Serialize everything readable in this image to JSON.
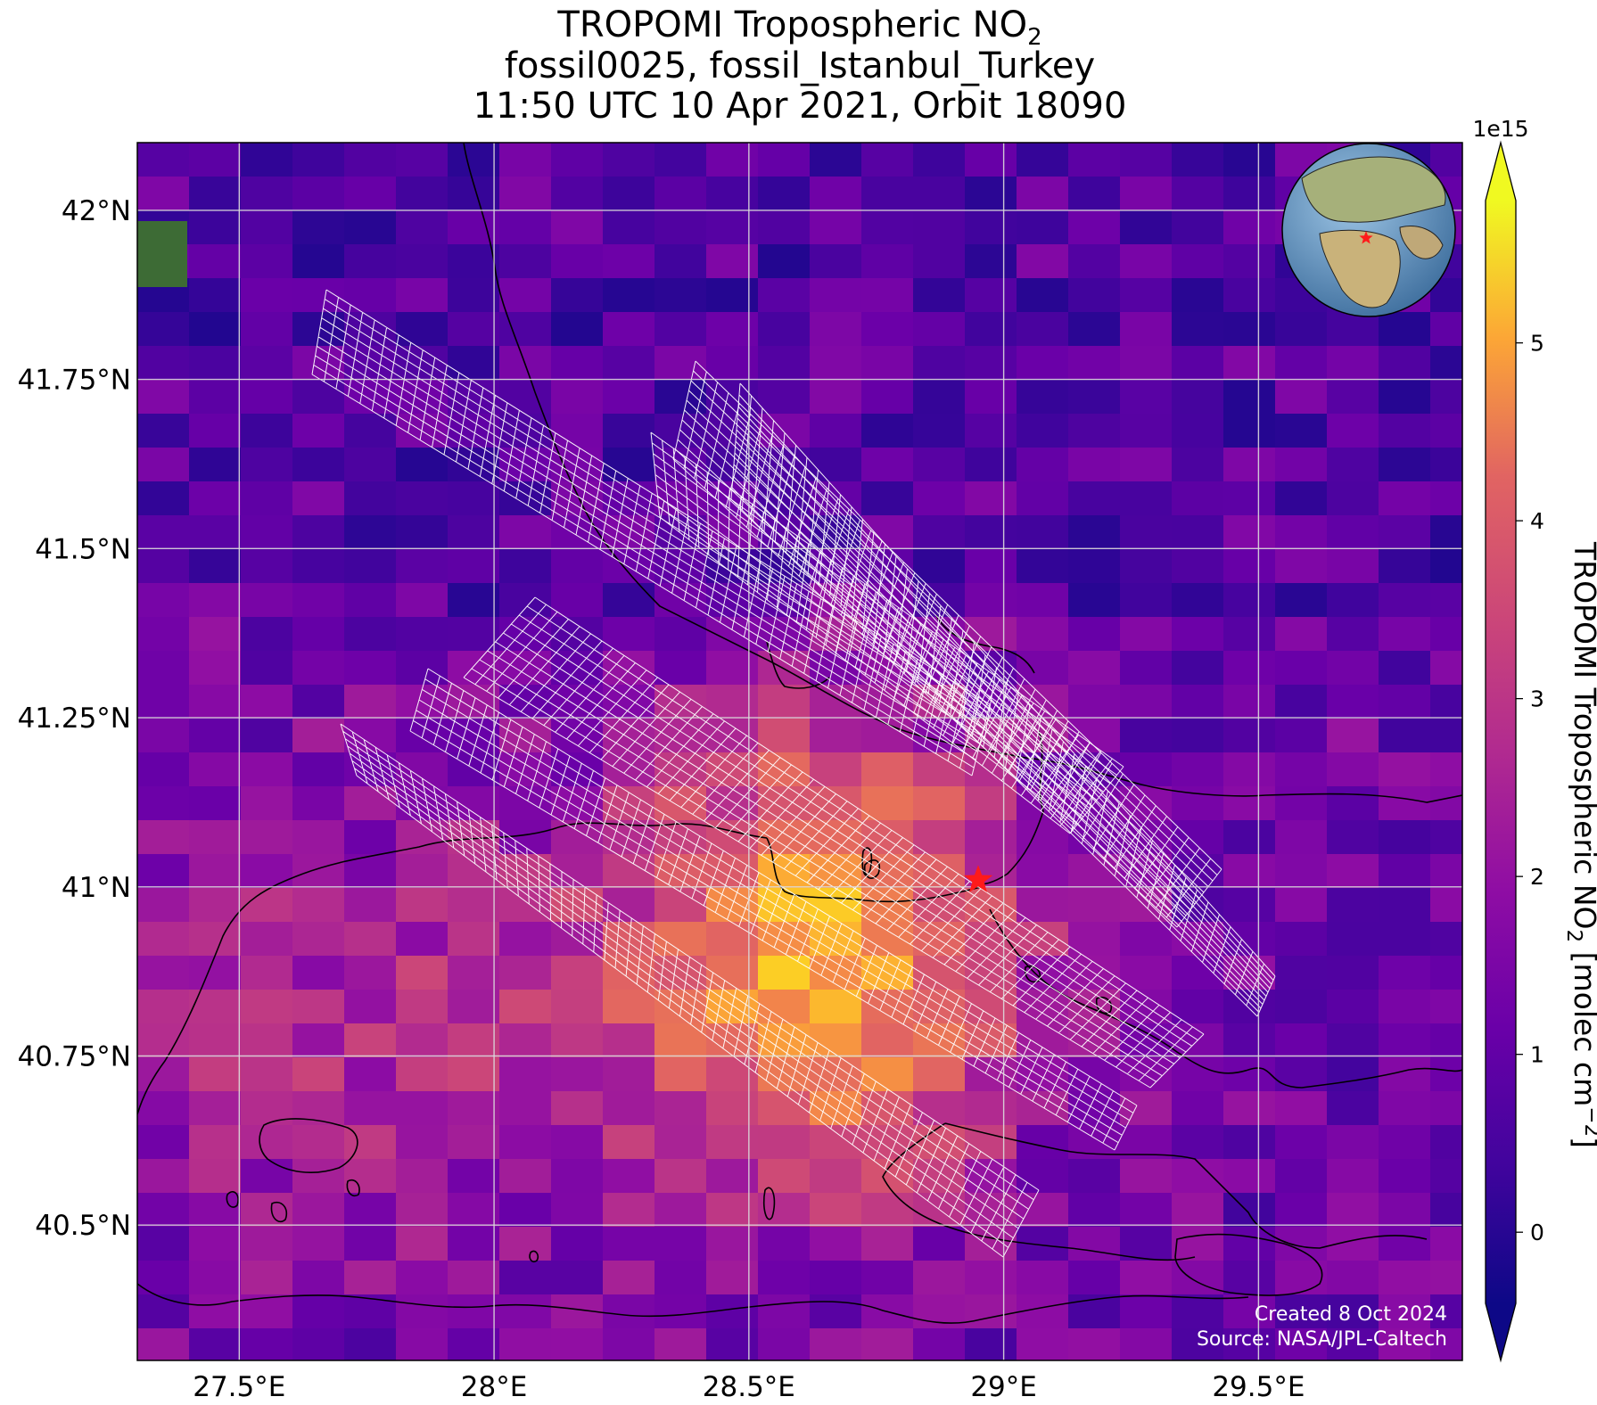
{
  "title": {
    "line1_prefix": "TROPOMI Tropospheric NO",
    "line1_sub": "2",
    "line2": "fossil0025, fossil_Istanbul_Turkey",
    "line3": "11:50 UTC 10 Apr 2021, Orbit 18090"
  },
  "map": {
    "extent": {
      "lon_min": 27.3,
      "lon_max": 29.9,
      "lat_min": 40.3,
      "lat_max": 42.1
    },
    "lon_ticks": [
      {
        "value": 27.5,
        "label": "27.5°E"
      },
      {
        "value": 28.0,
        "label": "28°E"
      },
      {
        "value": 28.5,
        "label": "28.5°E"
      },
      {
        "value": 29.0,
        "label": "29°E"
      },
      {
        "value": 29.5,
        "label": "29.5°E"
      }
    ],
    "lat_ticks": [
      {
        "value": 42.0,
        "label": "42°N"
      },
      {
        "value": 41.75,
        "label": "41.75°N"
      },
      {
        "value": 41.5,
        "label": "41.5°N"
      },
      {
        "value": 41.25,
        "label": "41.25°N"
      },
      {
        "value": 41.0,
        "label": "41°N"
      },
      {
        "value": 40.75,
        "label": "40.75°N"
      },
      {
        "value": 40.5,
        "label": "40.5°N"
      }
    ],
    "gridlines": true,
    "target_marker": {
      "lon": 28.95,
      "lat": 41.01,
      "color": "#ff1a1a",
      "shape": "star"
    },
    "colormap": "plasma",
    "overlay_color": "#ffffff"
  },
  "colorbar": {
    "label_prefix": "TROPOMI Tropospheric NO",
    "label_sub": "2",
    "label_units_prefix": " [molec cm",
    "label_units_sup": "−2",
    "label_units_suffix": "]",
    "scale_note": "1e15",
    "vmin": -0.4,
    "vmax": 5.8,
    "extend": "both",
    "ticks": [
      {
        "value": 0,
        "label": "0"
      },
      {
        "value": 1,
        "label": "1"
      },
      {
        "value": 2,
        "label": "2"
      },
      {
        "value": 3,
        "label": "3"
      },
      {
        "value": 4,
        "label": "4"
      },
      {
        "value": 5,
        "label": "5"
      }
    ]
  },
  "credits": {
    "created": "Created 8 Oct 2024",
    "source": "Source: NASA/JPL-Caltech"
  },
  "inset_globe": {
    "marker_color": "#ff1a1a"
  }
}
